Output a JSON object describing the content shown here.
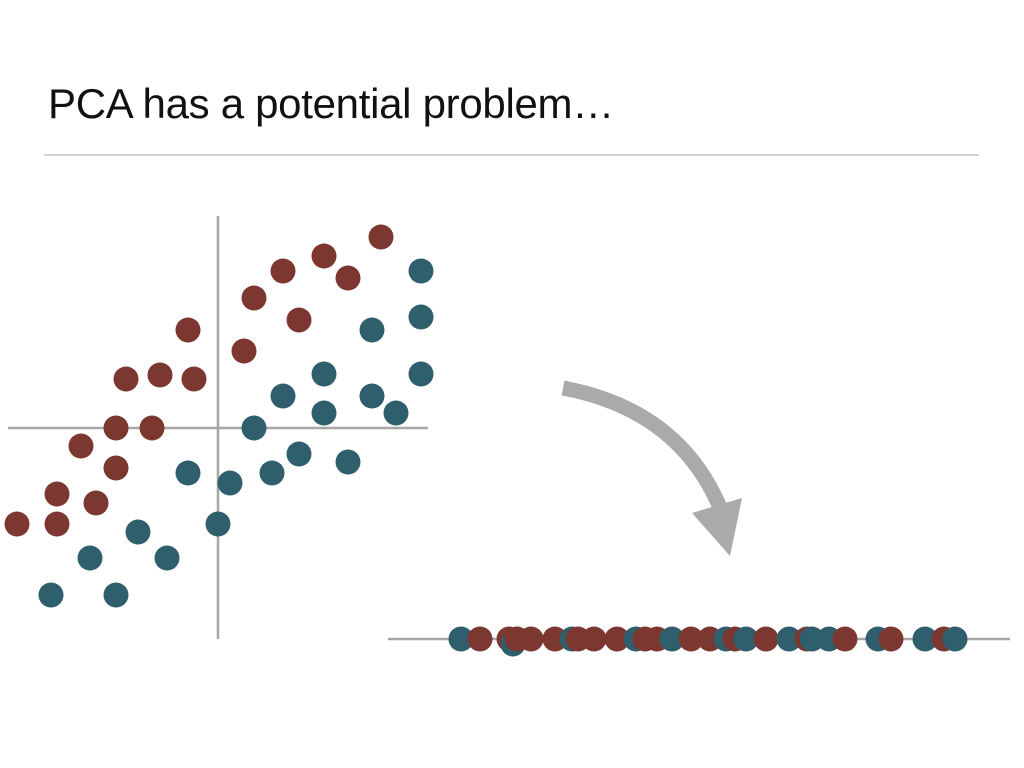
{
  "slide": {
    "title": "PCA has a potential problem…"
  },
  "colors": {
    "class_a": "#7b3730",
    "class_b": "#2f5e6c",
    "axis": "#a6a6a6",
    "arrow": "#aaaaaa",
    "rule": "#d4d4d4"
  },
  "scatter": {
    "class_a": [
      [
        -201,
        -96
      ],
      [
        -161,
        -96
      ],
      [
        -161,
        -66
      ],
      [
        -122,
        -75
      ],
      [
        -102,
        -40
      ],
      [
        -137,
        -18
      ],
      [
        -102,
        0
      ],
      [
        -66,
        0
      ],
      [
        -92,
        49
      ],
      [
        -58,
        53
      ],
      [
        -24,
        49
      ],
      [
        -30,
        98
      ],
      [
        26,
        77
      ],
      [
        36,
        130
      ],
      [
        65,
        157
      ],
      [
        81,
        108
      ],
      [
        106,
        172
      ],
      [
        130,
        150
      ],
      [
        163,
        191
      ]
    ],
    "class_b": [
      [
        -167,
        -167
      ],
      [
        -102,
        -167
      ],
      [
        -128,
        -130
      ],
      [
        -80,
        -104
      ],
      [
        -51,
        -130
      ],
      [
        0,
        -96
      ],
      [
        -30,
        -45
      ],
      [
        12,
        -55
      ],
      [
        54,
        -45
      ],
      [
        81,
        -26
      ],
      [
        130,
        -34
      ],
      [
        36,
        0
      ],
      [
        65,
        32
      ],
      [
        106,
        15
      ],
      [
        106,
        54
      ],
      [
        178,
        15
      ],
      [
        154,
        32
      ],
      [
        154,
        98
      ],
      [
        203,
        111
      ],
      [
        203,
        157
      ],
      [
        203,
        54
      ]
    ]
  },
  "projection": {
    "points": [
      {
        "x": 461,
        "class": "b"
      },
      {
        "x": 480,
        "class": "a"
      },
      {
        "x": 509,
        "class": "a"
      },
      {
        "x": 513,
        "class": "b",
        "offset": 5
      },
      {
        "x": 517,
        "class": "a"
      },
      {
        "x": 531,
        "class": "a"
      },
      {
        "x": 555,
        "class": "a"
      },
      {
        "x": 572,
        "class": "b"
      },
      {
        "x": 578,
        "class": "a"
      },
      {
        "x": 594,
        "class": "a"
      },
      {
        "x": 617,
        "class": "a"
      },
      {
        "x": 636,
        "class": "b"
      },
      {
        "x": 645,
        "class": "a"
      },
      {
        "x": 657,
        "class": "a"
      },
      {
        "x": 672,
        "class": "b"
      },
      {
        "x": 691,
        "class": "a"
      },
      {
        "x": 710,
        "class": "a"
      },
      {
        "x": 726,
        "class": "b"
      },
      {
        "x": 735,
        "class": "a"
      },
      {
        "x": 746,
        "class": "b"
      },
      {
        "x": 766,
        "class": "a"
      },
      {
        "x": 789,
        "class": "b"
      },
      {
        "x": 807,
        "class": "a"
      },
      {
        "x": 812,
        "class": "b"
      },
      {
        "x": 829,
        "class": "b"
      },
      {
        "x": 845,
        "class": "a"
      },
      {
        "x": 878,
        "class": "b"
      },
      {
        "x": 891,
        "class": "a"
      },
      {
        "x": 925,
        "class": "b"
      },
      {
        "x": 944,
        "class": "a"
      },
      {
        "x": 955,
        "class": "b"
      }
    ]
  }
}
